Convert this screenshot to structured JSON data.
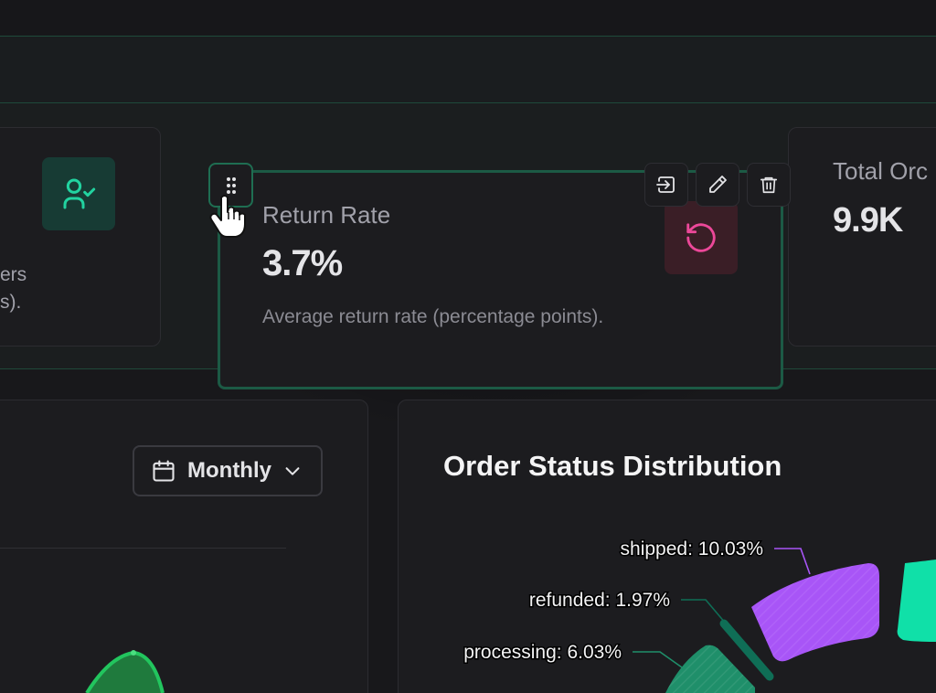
{
  "kpi_cards": {
    "left_partial": {
      "lines": [
        "ers",
        "s)."
      ]
    },
    "active": {
      "title": "Return Rate",
      "value": "3.7%",
      "description": "Average return rate (percentage points)."
    },
    "right_partial": {
      "title": "Total Orc",
      "value": "9.9K"
    }
  },
  "toolbar": {
    "icons": [
      "move-icon",
      "edit-icon",
      "delete-icon"
    ]
  },
  "period_select": {
    "label": "Monthly"
  },
  "order_status_chart": {
    "title": "Order Status Distribution"
  },
  "chart_data": {
    "type": "pie",
    "title": "Order Status Distribution",
    "slices": [
      {
        "label": "shipped",
        "value": 10.03,
        "display": "shipped: 10.03%",
        "color": "#a855f7"
      },
      {
        "label": "refunded",
        "value": 1.97,
        "display": "refunded: 1.97%",
        "color": "#0f6e56"
      },
      {
        "label": "processing",
        "value": 6.03,
        "display": "processing: 6.03%",
        "color": "#1f8f6a"
      }
    ]
  },
  "colors": {
    "accent_green": "#22d3a0",
    "return_red": "#ec4899",
    "border_green": "#1c5a45"
  }
}
